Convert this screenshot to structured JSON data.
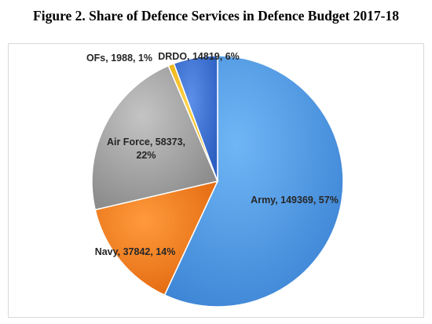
{
  "chart_data": {
    "type": "pie",
    "title": "Figure 2. Share of Defence Services in Defence Budget 2017-18",
    "slices": [
      {
        "name": "Army",
        "value": 149369,
        "percent": "57%",
        "color": "#4f9de8",
        "label": "Army, 149369, 57%"
      },
      {
        "name": "Navy",
        "value": 37842,
        "percent": "14%",
        "color": "#f07a1e",
        "label": "Navy, 37842, 14%"
      },
      {
        "name": "Air Force",
        "value": 58373,
        "percent": "22%",
        "color": "#a6a6a6",
        "label_lines": [
          "Air Force, 58373,",
          "22%"
        ]
      },
      {
        "name": "OFs",
        "value": 1988,
        "percent": "1%",
        "color": "#ffc000",
        "label": "OFs, 1988, 1%"
      },
      {
        "name": "DRDO",
        "value": 14819,
        "percent": "6%",
        "color": "#3a73d8",
        "label": "DRDO, 14819, 6%"
      }
    ],
    "legend": "none"
  }
}
